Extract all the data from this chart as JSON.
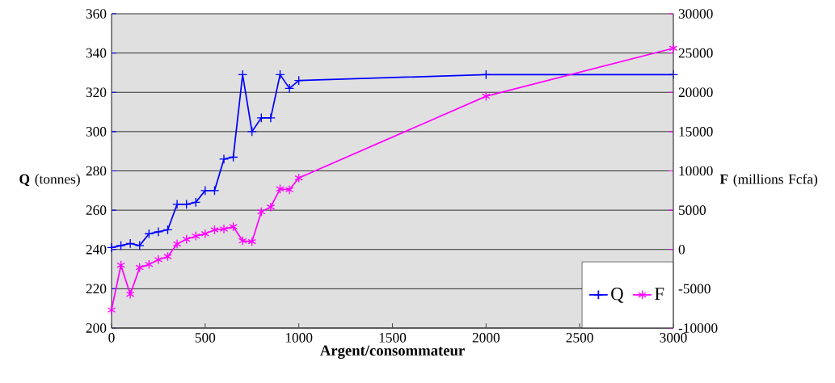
{
  "chart_data": {
    "type": "line",
    "xlabel": "Argent/consommateur",
    "ylabel": "**Q** (tonnes)",
    "y2label": "**F** (millions Fcfa)",
    "x": [
      0,
      50,
      100,
      150,
      200,
      250,
      300,
      350,
      400,
      450,
      500,
      550,
      600,
      650,
      700,
      750,
      800,
      850,
      900,
      950,
      1000,
      2000,
      3000
    ],
    "series": [
      {
        "name": "Q",
        "color": "#0000ff",
        "marker": "cross",
        "values": [
          241,
          242,
          243,
          242,
          248,
          249,
          250,
          263,
          263,
          264,
          270,
          270,
          286,
          287,
          329,
          300,
          307,
          307,
          329,
          322,
          326,
          329,
          329
        ]
      },
      {
        "name": "F",
        "color": "#ff00ff",
        "marker": "cross",
        "axis": "y2",
        "values": [
          -7700,
          -2000,
          -5700,
          -2300,
          -1900,
          -1300,
          -900,
          700,
          1300,
          1700,
          2000,
          2500,
          2600,
          2900,
          1100,
          1000,
          4800,
          5400,
          7700,
          7600,
          9100,
          19500,
          25600
        ]
      }
    ],
    "xlim": [
      0,
      3000
    ],
    "xticks": [
      0,
      500,
      1000,
      1500,
      2000,
      2500,
      3000
    ],
    "ylim": [
      200,
      360
    ],
    "yticks": [
      200,
      220,
      240,
      260,
      280,
      300,
      320,
      340,
      360
    ],
    "y2lim": [
      -10000,
      30000
    ],
    "y2ticks": [
      -10000,
      -5000,
      0,
      5000,
      10000,
      15000,
      20000,
      25000,
      30000
    ],
    "grid": "y",
    "legend": "bottom right"
  }
}
